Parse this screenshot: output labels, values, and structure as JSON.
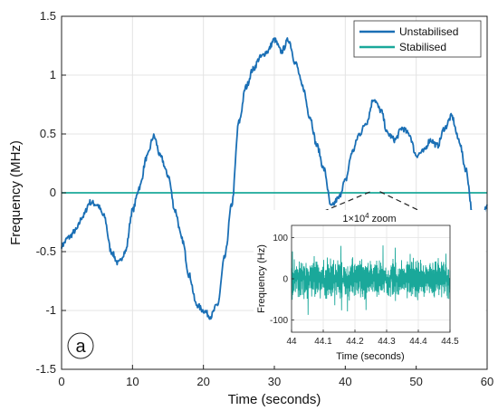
{
  "chart_data": [
    {
      "type": "line",
      "xlabel": "Time (seconds)",
      "ylabel": "Frequency (MHz)",
      "xlim": [
        0,
        60
      ],
      "ylim": [
        -1.5,
        1.5
      ],
      "x_ticks": [
        "0",
        "10",
        "20",
        "30",
        "40",
        "50",
        "60"
      ],
      "y_ticks": [
        "-1.5",
        "-1",
        "-0.5",
        "0",
        "0.5",
        "1",
        "1.5"
      ],
      "grid": true,
      "legend": "top-right",
      "panel_label": "a",
      "series": [
        {
          "name": "Unstabilised",
          "color": "#1a6fb5",
          "x": [
            0,
            1,
            2,
            3,
            4,
            5,
            6,
            7,
            8,
            9,
            10,
            11,
            12,
            13,
            14,
            15,
            16,
            17,
            18,
            19,
            20,
            21,
            22,
            23,
            24,
            25,
            26,
            27,
            28,
            29,
            30,
            31,
            32,
            33,
            34,
            35,
            36,
            37,
            38,
            39,
            40,
            41,
            42,
            43,
            44,
            45,
            46,
            47,
            48,
            49,
            50,
            51,
            52,
            53,
            54,
            55,
            56,
            57,
            58,
            59,
            60
          ],
          "y": [
            -0.45,
            -0.38,
            -0.32,
            -0.2,
            -0.08,
            -0.1,
            -0.2,
            -0.5,
            -0.6,
            -0.5,
            -0.15,
            0.05,
            0.3,
            0.48,
            0.3,
            0.15,
            -0.15,
            -0.4,
            -0.7,
            -0.95,
            -1.0,
            -1.05,
            -0.95,
            -0.55,
            -0.1,
            0.6,
            0.9,
            1.05,
            1.15,
            1.2,
            1.3,
            1.2,
            1.3,
            1.1,
            0.9,
            0.65,
            0.4,
            0.2,
            -0.12,
            -0.05,
            0.1,
            0.35,
            0.5,
            0.6,
            0.8,
            0.7,
            0.5,
            0.45,
            0.55,
            0.5,
            0.32,
            0.35,
            0.45,
            0.4,
            0.55,
            0.65,
            0.45,
            0.2,
            -0.2,
            -0.35,
            -0.1
          ]
        },
        {
          "name": "Stabilised",
          "color": "#1aa89a",
          "x": [
            0,
            60
          ],
          "y": [
            0,
            0
          ]
        }
      ]
    },
    {
      "type": "line",
      "title": "1×10⁴ zoom",
      "title_main": "1×10",
      "title_exp": "4",
      "title_rest": " zoom",
      "xlabel": "Time (seconds)",
      "ylabel": "Frequency (Hz)",
      "xlim": [
        44,
        44.5
      ],
      "ylim": [
        -130,
        130
      ],
      "x_ticks": [
        "44",
        "44.1",
        "44.2",
        "44.3",
        "44.4",
        "44.5"
      ],
      "y_ticks": [
        "100",
        "0",
        "-100"
      ],
      "grid": true,
      "series": [
        {
          "color": "#1aa89a",
          "amplitude": 55,
          "peak_amplitude": 95
        }
      ]
    }
  ]
}
